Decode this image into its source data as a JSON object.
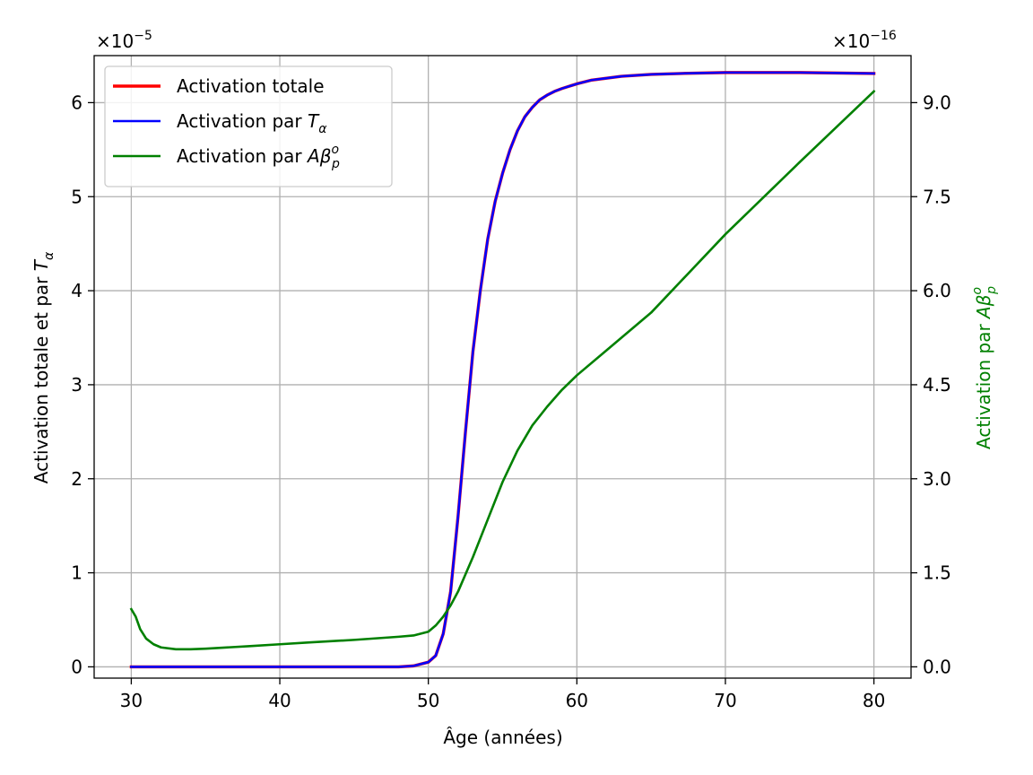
{
  "chart_data": {
    "type": "line",
    "xlabel": "Âge (années)",
    "ylabel": {
      "main": "Activation totale et par ",
      "sym": "T",
      "sub": "α"
    },
    "y2label": {
      "main": "Activation par ",
      "sym": "Aβ",
      "sup": "o",
      "sub": "p"
    },
    "y_offset": {
      "base": "×10",
      "exp": "−5"
    },
    "y2_offset": {
      "base": "×10",
      "exp": "−16"
    },
    "xlim": [
      27.5,
      82.5
    ],
    "ylim": [
      -0.12,
      6.5
    ],
    "y2lim": [
      -0.18,
      9.75
    ],
    "xticks": [
      30,
      40,
      50,
      60,
      70,
      80
    ],
    "yticks": [
      0,
      1,
      2,
      3,
      4,
      5,
      6
    ],
    "y2ticks": [
      0.0,
      1.5,
      3.0,
      4.5,
      6.0,
      7.5,
      9.0
    ],
    "grid": true,
    "legend_position": "upper-left",
    "colors": {
      "total": "#ff0000",
      "t_alpha": "#0000ff",
      "abeta": "#008000",
      "y2label": "#008000"
    },
    "legend": [
      {
        "name": "Activation totale",
        "sym": "",
        "sup": "",
        "sub": "",
        "color": "#ff0000"
      },
      {
        "name": "Activation par ",
        "sym": "T",
        "sup": "",
        "sub": "α",
        "color": "#0000ff"
      },
      {
        "name": "Activation par ",
        "sym": "Aβ",
        "sup": "o",
        "sub": "p",
        "color": "#008000"
      }
    ],
    "series": [
      {
        "key": "total",
        "axis": "left",
        "x": [
          30,
          40,
          45,
          48,
          49,
          50,
          50.5,
          51,
          51.5,
          52,
          52.5,
          53,
          53.5,
          54,
          54.5,
          55,
          55.5,
          56,
          56.5,
          57,
          57.5,
          58,
          58.5,
          59,
          60,
          61,
          62,
          63,
          65,
          67,
          70,
          75,
          80
        ],
        "y": [
          0,
          0,
          0,
          0,
          0.01,
          0.05,
          0.12,
          0.35,
          0.8,
          1.6,
          2.5,
          3.35,
          4.0,
          4.55,
          4.95,
          5.25,
          5.5,
          5.7,
          5.85,
          5.95,
          6.03,
          6.08,
          6.12,
          6.15,
          6.2,
          6.24,
          6.26,
          6.28,
          6.3,
          6.31,
          6.32,
          6.32,
          6.31
        ]
      },
      {
        "key": "t_alpha",
        "axis": "left",
        "x": [
          30,
          40,
          45,
          48,
          49,
          50,
          50.5,
          51,
          51.5,
          52,
          52.5,
          53,
          53.5,
          54,
          54.5,
          55,
          55.5,
          56,
          56.5,
          57,
          57.5,
          58,
          58.5,
          59,
          60,
          61,
          62,
          63,
          65,
          67,
          70,
          75,
          80
        ],
        "y": [
          0,
          0,
          0,
          0,
          0.01,
          0.05,
          0.12,
          0.35,
          0.8,
          1.6,
          2.5,
          3.35,
          4.0,
          4.55,
          4.95,
          5.25,
          5.5,
          5.7,
          5.85,
          5.95,
          6.03,
          6.08,
          6.12,
          6.15,
          6.2,
          6.24,
          6.26,
          6.28,
          6.3,
          6.31,
          6.32,
          6.32,
          6.31
        ]
      },
      {
        "key": "abeta",
        "axis": "right",
        "x": [
          30,
          30.3,
          30.6,
          31,
          31.5,
          32,
          33,
          34,
          35,
          38,
          40,
          42,
          45,
          48,
          49,
          50,
          50.5,
          51,
          51.5,
          52,
          53,
          54,
          55,
          56,
          57,
          58,
          59,
          60,
          62,
          65,
          70,
          75,
          80
        ],
        "y": [
          0.92,
          0.8,
          0.6,
          0.45,
          0.36,
          0.31,
          0.28,
          0.28,
          0.29,
          0.33,
          0.36,
          0.39,
          0.43,
          0.48,
          0.5,
          0.56,
          0.66,
          0.8,
          0.98,
          1.2,
          1.75,
          2.35,
          2.95,
          3.45,
          3.85,
          4.15,
          4.42,
          4.65,
          5.05,
          5.65,
          6.9,
          8.05,
          9.18
        ]
      }
    ]
  }
}
